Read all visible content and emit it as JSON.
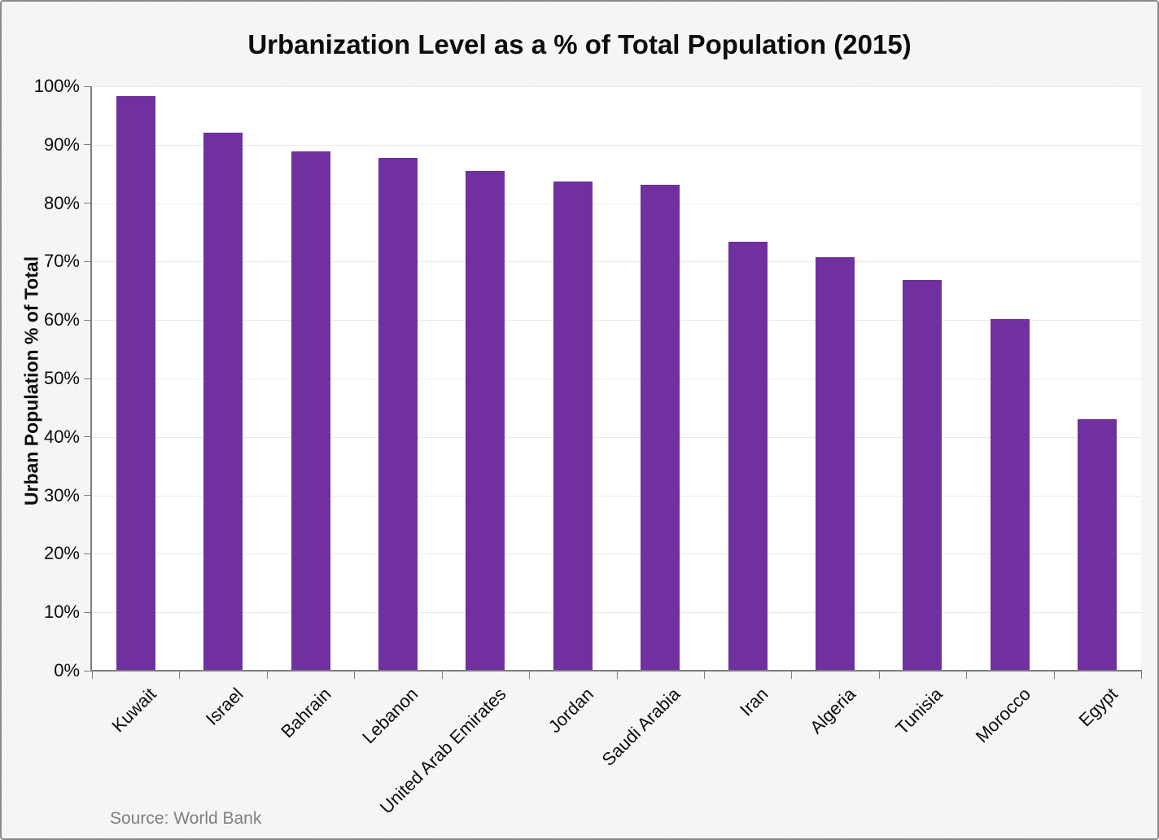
{
  "source": "Source: World Bank",
  "chart_data": {
    "type": "bar",
    "title": "Urbanization Level as a % of Total Population (2015)",
    "ylabel": "Urban Population % of Total",
    "xlabel": "",
    "categories": [
      "Kuwait",
      "Israel",
      "Bahrain",
      "Lebanon",
      "United Arab Emirates",
      "Jordan",
      "Saudi Arabia",
      "Iran",
      "Algeria",
      "Tunisia",
      "Morocco",
      "Egypt"
    ],
    "values": [
      98.3,
      92.1,
      88.8,
      87.7,
      85.5,
      83.7,
      83.1,
      73.4,
      70.7,
      66.8,
      60.2,
      43.1
    ],
    "ylim": [
      0,
      100
    ],
    "ytick_step": 10,
    "ytick_labels": [
      "0%",
      "10%",
      "20%",
      "30%",
      "40%",
      "50%",
      "60%",
      "70%",
      "80%",
      "90%",
      "100%"
    ],
    "grid": "horizontal",
    "legend": "none",
    "bar_color": "#7030a0",
    "gridline_color": "#e9e9e9",
    "axis_color": "#7c7c7c"
  }
}
